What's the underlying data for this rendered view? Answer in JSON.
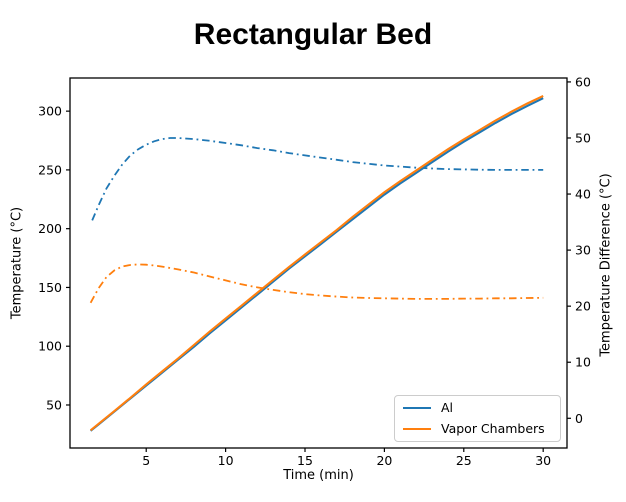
{
  "chart_data": {
    "type": "line",
    "title": "Rectangular Bed",
    "xlabel": "Time (min)",
    "ylabel_left": "Temperature (°C)",
    "ylabel_right": "Temperature Difference (°C)",
    "xlim": [
      0.2,
      31.5
    ],
    "ylim_left": [
      13.4,
      328.2
    ],
    "ylim_right": [
      -5.3,
      60.7
    ],
    "xticks": [
      5,
      10,
      15,
      20,
      25,
      30
    ],
    "yticks_left": [
      50,
      100,
      150,
      200,
      250,
      300
    ],
    "yticks_right": [
      0,
      10,
      20,
      30,
      40,
      50,
      60
    ],
    "grid": false,
    "legend": {
      "position": "lower right",
      "entries": [
        {
          "label": "Al",
          "color": "#1f77b4"
        },
        {
          "label": "Vapor Chambers",
          "color": "#ff7f0e"
        }
      ]
    },
    "series": [
      {
        "name": "al-temperature",
        "axis": "left",
        "style": "solid",
        "color": "#1f77b4",
        "x": [
          1.5,
          2,
          3,
          4,
          5,
          6,
          7,
          8,
          9,
          10,
          11,
          12,
          13,
          14,
          15,
          16,
          17,
          18,
          19,
          20,
          21,
          22,
          23,
          24,
          25,
          26,
          27,
          28,
          29,
          30
        ],
        "y": [
          28,
          33.5,
          44.5,
          55.5,
          66.5,
          77.5,
          88.5,
          99.5,
          111,
          122,
          133,
          144,
          155,
          166,
          176.5,
          187,
          197.5,
          208,
          218.5,
          229,
          238.5,
          247.5,
          256.5,
          265.5,
          274,
          282,
          290,
          297.5,
          304.5,
          311
        ]
      },
      {
        "name": "vapor-chambers-temperature",
        "axis": "left",
        "style": "solid",
        "color": "#ff7f0e",
        "x": [
          1.5,
          2,
          3,
          4,
          5,
          6,
          7,
          8,
          9,
          10,
          11,
          12,
          13,
          14,
          15,
          16,
          17,
          18,
          19,
          20,
          21,
          22,
          23,
          24,
          25,
          26,
          27,
          28,
          29,
          30
        ],
        "y": [
          28.5,
          34,
          45,
          56,
          67.5,
          78.5,
          89.5,
          101,
          112.5,
          123.5,
          134.5,
          145.5,
          156.5,
          167.5,
          178,
          188.5,
          199,
          210,
          220.5,
          231,
          240.5,
          249.5,
          258.5,
          267.5,
          276,
          284,
          292,
          299.5,
          306.5,
          313
        ]
      },
      {
        "name": "al-temperature-difference",
        "axis": "right",
        "style": "dashdot",
        "color": "#1f77b4",
        "x": [
          1.6,
          2,
          2.5,
          3,
          3.5,
          4,
          4.5,
          5,
          5.5,
          6,
          6.5,
          7,
          8,
          9,
          10,
          11,
          12,
          13,
          14,
          15,
          16,
          17,
          18,
          19,
          20,
          21,
          22,
          23,
          24,
          25,
          26,
          27,
          28,
          29,
          30
        ],
        "y": [
          35.3,
          38.0,
          41.0,
          43.3,
          45.3,
          46.9,
          48.0,
          48.8,
          49.4,
          49.8,
          50.0,
          50.0,
          49.8,
          49.5,
          49.1,
          48.7,
          48.2,
          47.8,
          47.3,
          46.9,
          46.5,
          46.1,
          45.7,
          45.4,
          45.1,
          44.9,
          44.7,
          44.55,
          44.45,
          44.4,
          44.35,
          44.3,
          44.3,
          44.3,
          44.3
        ]
      },
      {
        "name": "vapor-chambers-temperature-difference",
        "axis": "right",
        "style": "dashdot",
        "color": "#ff7f0e",
        "x": [
          1.5,
          2,
          2.5,
          3,
          3.5,
          4,
          4.5,
          5,
          5.5,
          6,
          7,
          8,
          9,
          10,
          11,
          12,
          13,
          14,
          15,
          16,
          17,
          18,
          19,
          20,
          21,
          22,
          23,
          24,
          25,
          26,
          27,
          28,
          29,
          30
        ],
        "y": [
          20.6,
          23.2,
          25.2,
          26.4,
          27.1,
          27.35,
          27.45,
          27.4,
          27.25,
          27.05,
          26.55,
          26.0,
          25.3,
          24.6,
          23.9,
          23.35,
          22.9,
          22.5,
          22.15,
          21.9,
          21.7,
          21.55,
          21.45,
          21.4,
          21.35,
          21.3,
          21.3,
          21.3,
          21.35,
          21.35,
          21.4,
          21.4,
          21.45,
          21.5
        ]
      }
    ],
    "colors": {
      "spine": "#000000",
      "tick_label": "#000000",
      "background": "#ffffff"
    }
  }
}
